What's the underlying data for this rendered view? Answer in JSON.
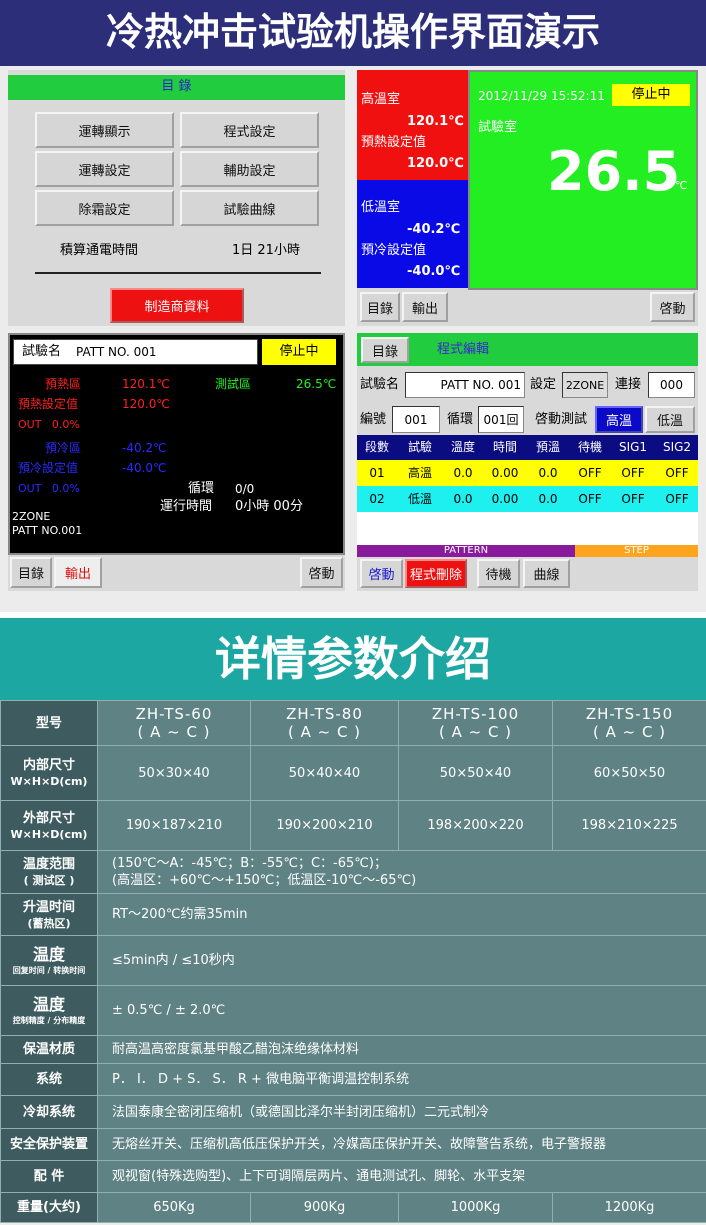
{
  "header": {
    "title": "冷热冲击试验机操作界面演示"
  },
  "menu_panel": {
    "title": "目 錄",
    "buttons": [
      "運轉顯示",
      "程式設定",
      "運轉設定",
      "輔助設定",
      "除霜設定",
      "試驗曲線"
    ],
    "hours_label": "積算通電時間",
    "hours_value": "1日 21小時",
    "maker_button": "制造商資料"
  },
  "status_panel": {
    "high_room": "高溫室",
    "high_temp": "120.1℃",
    "preheat_label": "預熱設定值",
    "preheat_value": "120.0℃",
    "low_room": "低溫室",
    "low_temp": "-40.2℃",
    "precool_label": "預冷設定值",
    "precool_value": "-40.0℃",
    "datetime": "2012/11/29 15:52:11",
    "state": "停止中",
    "test_room": "試驗室",
    "test_temp": "26.5",
    "test_unit": "℃",
    "buttons": [
      "目錄",
      "輸出",
      "啓動"
    ]
  },
  "run_panel": {
    "test_name_label": "試驗名",
    "test_name": "PATT NO. 001",
    "state": "停止中",
    "preheat_zone": "預熱區",
    "preheat_temp": "120.1℃",
    "test_zone": "測試區",
    "test_temp": "26.5℃",
    "preheat_set_label": "預熱設定值",
    "preheat_set": "120.0℃",
    "preheat_out": "OUT   0.0%",
    "precool_zone": "預冷區",
    "precool_temp": "-40.2℃",
    "precool_set_label": "預冷設定值",
    "precool_set": "-40.0℃",
    "precool_out": "OUT   0.0%",
    "cycle_label": "循環",
    "cycle_value": "0/0",
    "runtime_label": "運行時間",
    "runtime_value": "0小時 00分",
    "zone": "2ZONE",
    "pattern": "PATT NO.001",
    "buttons": [
      "目錄",
      "輸出",
      "啓動"
    ]
  },
  "program_panel": {
    "menu_button": "目錄",
    "title": "程式編輯",
    "test_name_label": "試驗名",
    "test_name": "PATT NO. 001",
    "setting_label": "設定",
    "setting": "2ZONE",
    "link_label": "連接",
    "link": "000",
    "number_label": "編號",
    "number": "001",
    "cycle_label": "循環",
    "cycle": "001回",
    "start_test_label": "啓動測試",
    "high_button": "高溫",
    "low_button": "低溫",
    "columns": [
      "段數",
      "試驗",
      "溫度",
      "時間",
      "預溫",
      "待機",
      "SIG1",
      "SIG2"
    ],
    "rows": [
      [
        "01",
        "高溫",
        "0.0",
        "0.00",
        "0.0",
        "OFF",
        "OFF",
        "OFF"
      ],
      [
        "02",
        "低溫",
        "0.0",
        "0.00",
        "0.0",
        "OFF",
        "OFF",
        "OFF"
      ]
    ],
    "pattern_bar": "PATTERN",
    "step_bar": "STEP",
    "buttons": [
      "啓動",
      "程式刪除",
      "待機",
      "曲線"
    ]
  },
  "details": {
    "title": "详情参数介绍",
    "rows": [
      {
        "label": [
          "型号"
        ],
        "cells": [
          [
            "ZH-TS-60",
            "( A ~ C )"
          ],
          [
            "ZH-TS-80",
            "( A ~ C )"
          ],
          [
            "ZH-TS-100",
            "( A ~ C )"
          ],
          [
            "ZH-TS-150",
            "( A ~ C )"
          ]
        ]
      },
      {
        "label": [
          "内部尺寸",
          "W×H×D(cm)"
        ],
        "cells": [
          [
            "50×30×40"
          ],
          [
            "50×40×40"
          ],
          [
            "50×50×40"
          ],
          [
            "60×50×50"
          ]
        ]
      },
      {
        "label": [
          "外部尺寸",
          "W×H×D(cm)"
        ],
        "cells": [
          [
            "190×187×210"
          ],
          [
            "190×200×210"
          ],
          [
            "198×200×220"
          ],
          [
            "198×210×225"
          ]
        ]
      },
      {
        "label": [
          "温度范围",
          "( 测试区 )"
        ],
        "cells": [
          [
            "(150℃～A：-45℃；B：-55℃；C：-65℃)；",
            "(高温区：+60℃～+150℃；低温区-10℃～-65℃)"
          ]
        ]
      },
      {
        "label": [
          "升温时间",
          "(蓄热区)"
        ],
        "cells": [
          [
            "RT～200℃约需35min"
          ]
        ]
      },
      {
        "label": [
          "温度",
          "回复时间 / 转换时间"
        ],
        "cells": [
          [
            "≤5min内 / ≤10秒内"
          ]
        ]
      },
      {
        "label": [
          "温度",
          "控制精度 / 分布精度"
        ],
        "cells": [
          [
            "± 0.5℃ / ± 2.0℃"
          ]
        ]
      },
      {
        "label": [
          "保温材质"
        ],
        "cells": [
          [
            "耐高温高密度氯基甲酸乙醋泡沫绝缘体材料"
          ]
        ]
      },
      {
        "label": [
          "系统"
        ],
        "cells": [
          [
            "P． I． D + S． S． R + 微电脑平衡调温控制系统"
          ]
        ]
      },
      {
        "label": [
          "冷却系统"
        ],
        "cells": [
          [
            "法国泰康全密闭压缩机（或德国比泽尔半封闭压缩机）二元式制冷"
          ]
        ]
      },
      {
        "label": [
          "安全保护装置"
        ],
        "cells": [
          [
            "无熔丝开关、压缩机高低压保护开关，冷媒高压保护开关、故障警告系统，电子警报器"
          ]
        ]
      },
      {
        "label": [
          "配 件"
        ],
        "cells": [
          [
            "观视窗(特殊选购型)、上下可调隔层两片、通电测试孔、脚轮、水平支架"
          ]
        ]
      },
      {
        "label": [
          "重量(大约)"
        ],
        "cells": [
          [
            "650Kg"
          ],
          [
            "900Kg"
          ],
          [
            "1000Kg"
          ],
          [
            "1200Kg"
          ]
        ]
      }
    ]
  }
}
